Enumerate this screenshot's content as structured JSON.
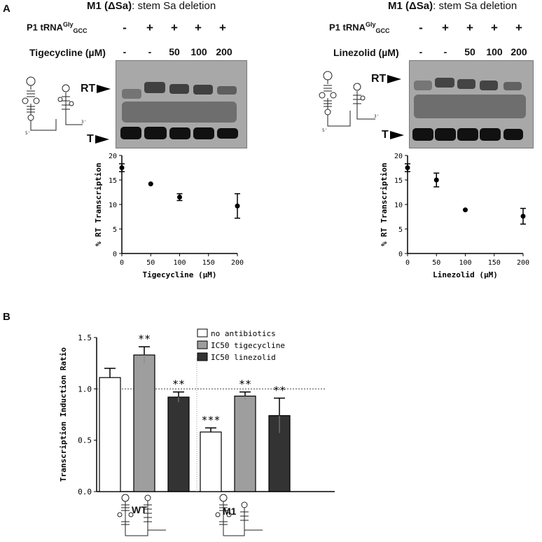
{
  "panel_a": {
    "letter": "A",
    "left": {
      "title_bold": "M1 (ΔSa)",
      "title_rest": ": stem Sa deletion",
      "row1_label": "P1 tRNA",
      "row1_sup": "Gly",
      "row1_sub": "GCC",
      "row1_signs": [
        "-",
        "+",
        "+",
        "+",
        "+"
      ],
      "row2_label": "Tigecycline (µM)",
      "row2_values": [
        "-",
        "-",
        "50",
        "100",
        "200"
      ],
      "rt_label": "RT",
      "t_label": "T"
    },
    "right": {
      "title_bold": "M1 (ΔSa)",
      "title_rest": ": stem Sa deletion",
      "row1_label": "P1 tRNA",
      "row1_sup": "Gly",
      "row1_sub": "GCC",
      "row1_signs": [
        "-",
        "+",
        "+",
        "+",
        "+"
      ],
      "row2_label": "Linezolid (µM)",
      "row2_values": [
        "-",
        "-",
        "50",
        "100",
        "200"
      ],
      "rt_label": "RT",
      "t_label": "T"
    }
  },
  "panel_b": {
    "letter": "B",
    "wt_label": "WT",
    "m1_label": "M1"
  },
  "colors": {
    "white_bar": "#ffffff",
    "tigecycline_bar": "#9e9e9e",
    "linezolid_bar": "#333333"
  },
  "chart_data": [
    {
      "type": "scatter",
      "xlabel": "Tigecycline (µM)",
      "ylabel": "% RT Transcription",
      "xlim": [
        0,
        200
      ],
      "ylim": [
        0,
        20
      ],
      "xticks": [
        "0",
        "50",
        "100",
        "150",
        "200"
      ],
      "yticks": [
        "0",
        "5",
        "10",
        "15",
        "20"
      ],
      "x": [
        0,
        50,
        100,
        200
      ],
      "y": [
        17.5,
        14.2,
        11.5,
        9.7
      ],
      "err": [
        0.8,
        0,
        0.7,
        2.5
      ]
    },
    {
      "type": "scatter",
      "xlabel": "Linezolid (µM)",
      "ylabel": "% RT Transcription",
      "xlim": [
        0,
        200
      ],
      "ylim": [
        0,
        20
      ],
      "xticks": [
        "0",
        "50",
        "100",
        "150",
        "200"
      ],
      "yticks": [
        "0",
        "5",
        "10",
        "15",
        "20"
      ],
      "x": [
        0,
        50,
        100,
        200
      ],
      "y": [
        17.5,
        15.0,
        8.9,
        7.6
      ],
      "err": [
        0.8,
        1.4,
        0,
        1.6
      ]
    },
    {
      "type": "bar",
      "ylabel": "Transcription Induction Ratio",
      "ylim": [
        0,
        1.5
      ],
      "yticks": [
        "0.0",
        "0.5",
        "1.0",
        "1.5"
      ],
      "reference_line": 1.0,
      "groups": [
        "WT",
        "M1"
      ],
      "legend_position": "top-right",
      "series": [
        {
          "name": "no antibiotics",
          "values": [
            1.11,
            0.58
          ],
          "err": [
            0.09,
            0.04
          ],
          "sig": [
            "",
            "***"
          ]
        },
        {
          "name": "IC50 tigecycline",
          "values": [
            1.33,
            0.93
          ],
          "err": [
            0.08,
            0.04
          ],
          "sig": [
            "**",
            "**"
          ]
        },
        {
          "name": "IC50 linezolid",
          "values": [
            0.92,
            0.74
          ],
          "err": [
            0.05,
            0.17
          ],
          "sig": [
            "**",
            "**"
          ]
        }
      ]
    }
  ]
}
